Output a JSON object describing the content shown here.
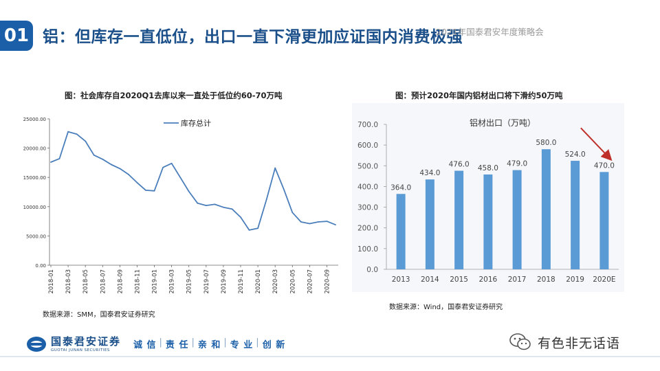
{
  "header": {
    "number": "01",
    "title": "铝：但库存一直低位，出口一直下滑更加应证国内消费极强",
    "event": "2021年国泰君安年度策略会"
  },
  "left_chart": {
    "title": "图：社会库存自2020Q1去库以来一直处于低位约60-70万吨",
    "source": "数据来源：SMM，国泰君安证券研究"
  },
  "right_chart": {
    "title": "图：预计2020年国内铝材出口将下滑约50万吨",
    "source": "数据来源：Wind，国泰君安证券研究"
  },
  "footer": {
    "logo_cn": "国泰君安证券",
    "logo_en": "GUOTAI JUNAN SECURITIES",
    "slogan": [
      "诚 信",
      "责 任",
      "亲 和",
      "专 业",
      "创 新"
    ],
    "watermark": "有色非无话语"
  },
  "colors": {
    "brand": "#1a5fa8",
    "line": "#4a7ebb",
    "bar": "#5b9bd5",
    "arrow": "#c0302b"
  },
  "chart_data": [
    {
      "type": "line",
      "title": "",
      "series": [
        {
          "name": "库存总计",
          "x": [
            "2018-01",
            "2018-02",
            "2018-03",
            "2018-04",
            "2018-05",
            "2018-06",
            "2018-07",
            "2018-08",
            "2018-09",
            "2018-10",
            "2018-11",
            "2018-12",
            "2019-01",
            "2019-02",
            "2019-03",
            "2019-04",
            "2019-05",
            "2019-06",
            "2019-07",
            "2019-08",
            "2019-09",
            "2019-10",
            "2019-11",
            "2019-12",
            "2020-01",
            "2020-02",
            "2020-03",
            "2020-04",
            "2020-05",
            "2020-06",
            "2020-07",
            "2020-08",
            "2020-09",
            "2020-10"
          ],
          "values": [
            17600,
            18200,
            22800,
            22400,
            21200,
            18800,
            18100,
            17200,
            16500,
            15500,
            14100,
            12800,
            12700,
            16700,
            17400,
            15000,
            12600,
            10600,
            10200,
            10400,
            9900,
            9600,
            8200,
            6000,
            6300,
            11200,
            16600,
            13000,
            9000,
            7400,
            7100,
            7400,
            7500,
            6900
          ]
        }
      ],
      "y_ticks": [
        "0.00",
        "5000.00",
        "10000.00",
        "15000.00",
        "20000.00",
        "25000.00"
      ],
      "x_ticks": [
        "2018-01",
        "2018-03",
        "2018-05",
        "2018-07",
        "2018-09",
        "2018-11",
        "2019-01",
        "2019-03",
        "2019-05",
        "2019-07",
        "2019-09",
        "2019-11",
        "2020-01",
        "2020-03",
        "2020-05",
        "2020-07",
        "2020-09"
      ],
      "ylim": [
        0,
        25000
      ],
      "legend": "top-left",
      "grid": false
    },
    {
      "type": "bar",
      "title": "铝材出口（万吨）",
      "categories": [
        "2013",
        "2014",
        "2015",
        "2016",
        "2017",
        "2018",
        "2019",
        "2020E"
      ],
      "values": [
        364.0,
        434.0,
        476.0,
        458.0,
        479.0,
        580.0,
        524.0,
        470.0
      ],
      "labels": [
        "364.0",
        "434.0",
        "476.0",
        "458.0",
        "479.0",
        "580.0",
        "524.0",
        "470.0"
      ],
      "y_ticks": [
        "0.0",
        "100.0",
        "200.0",
        "300.0",
        "400.0",
        "500.0",
        "600.0",
        "700.0"
      ],
      "ylim": [
        0,
        700
      ],
      "grid": false
    }
  ]
}
